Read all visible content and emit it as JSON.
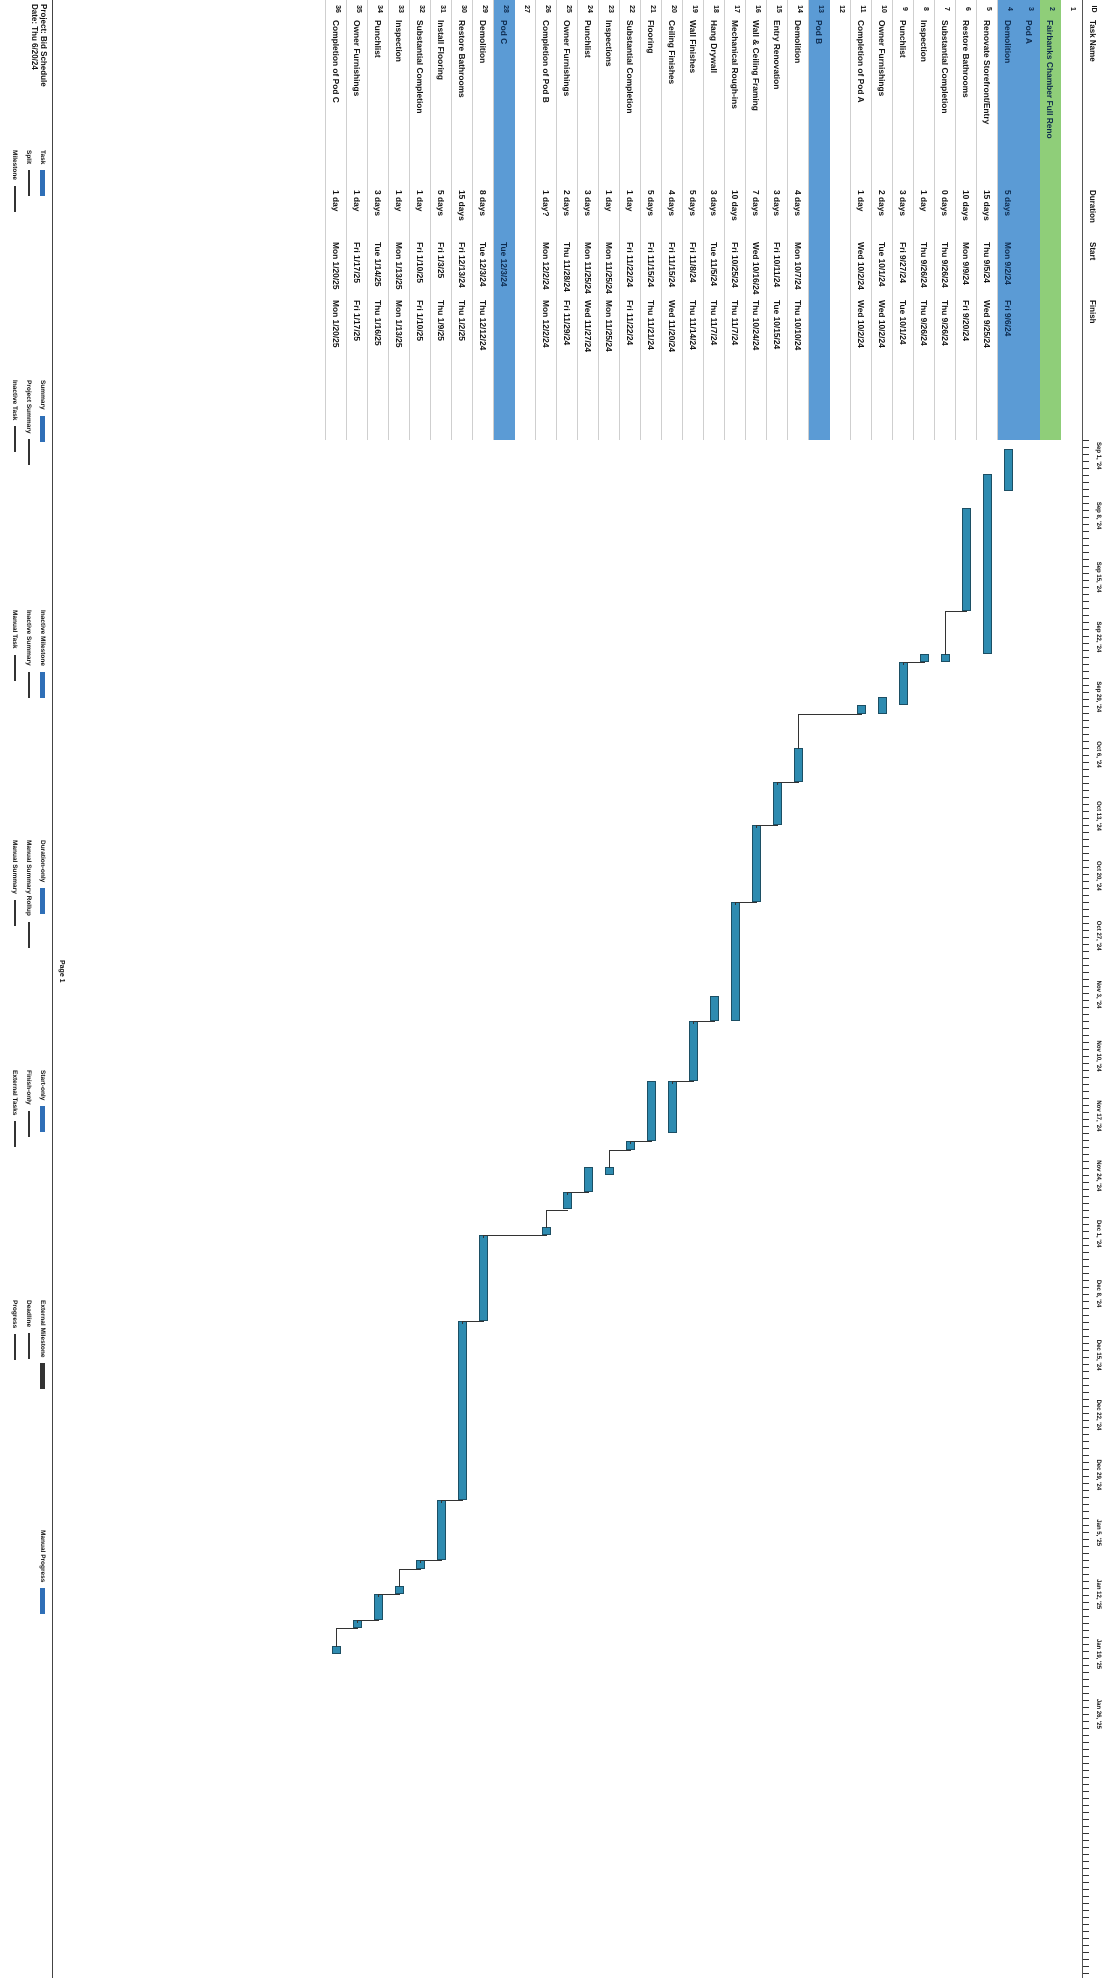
{
  "header": {
    "id": "ID",
    "task_name": "Task Name",
    "duration": "Duration",
    "start": "Start",
    "finish": "Finish"
  },
  "timeline": {
    "labels": [
      "Sep 1, '24",
      "Sep 8, '24",
      "Sep 15, '24",
      "Sep 22, '24",
      "Sep 29, '24",
      "Oct 6, '24",
      "Oct 13, '24",
      "Oct 20, '24",
      "Oct 27, '24",
      "Nov 3, '24",
      "Nov 10, '24",
      "Nov 17, '24",
      "Nov 24, '24",
      "Dec 1, '24",
      "Dec 8, '24",
      "Dec 15, '24",
      "Dec 22, '24",
      "Dec 29, '24",
      "Jan 5, '25",
      "Jan 12, '25",
      "Jan 19, '25",
      "Jan 26, '25"
    ]
  },
  "tasks": [
    {
      "id": "1",
      "name": "",
      "duration": "",
      "start": "",
      "finish": "",
      "style": "plain"
    },
    {
      "id": "2",
      "name": "Fairbanks Chamber Full Reno",
      "duration": "",
      "start": "",
      "finish": "",
      "style": "green"
    },
    {
      "id": "3",
      "name": "Pod A",
      "duration": "",
      "start": "",
      "finish": "",
      "style": "band"
    },
    {
      "id": "4",
      "name": "Demolition",
      "duration": "5 days",
      "start": "Mon 9/2/24",
      "finish": "Fri 9/6/24",
      "style": "band"
    },
    {
      "id": "5",
      "name": "Renovate Storefront/Entry",
      "duration": "15 days",
      "start": "Thu 9/5/24",
      "finish": "Wed 9/25/24",
      "style": "plain"
    },
    {
      "id": "6",
      "name": "Restore Bathrooms",
      "duration": "10 days",
      "start": "Mon 9/9/24",
      "finish": "Fri 9/20/24",
      "style": "plain"
    },
    {
      "id": "7",
      "name": "Substantial Completion",
      "duration": "0 days",
      "start": "Thu 9/26/24",
      "finish": "Thu 9/26/24",
      "style": "plain"
    },
    {
      "id": "8",
      "name": "Inspection",
      "duration": "1 day",
      "start": "Thu 9/26/24",
      "finish": "Thu 9/26/24",
      "style": "plain"
    },
    {
      "id": "9",
      "name": "Punchlist",
      "duration": "3 days",
      "start": "Fri 9/27/24",
      "finish": "Tue 10/1/24",
      "style": "plain"
    },
    {
      "id": "10",
      "name": "Owner Furnishings",
      "duration": "2 days",
      "start": "Tue 10/1/24",
      "finish": "Wed 10/2/24",
      "style": "plain"
    },
    {
      "id": "11",
      "name": "Completion of Pod A",
      "duration": "1 day",
      "start": "Wed 10/2/24",
      "finish": "Wed 10/2/24",
      "style": "plain"
    },
    {
      "id": "12",
      "name": "",
      "duration": "",
      "start": "",
      "finish": "",
      "style": "plain"
    },
    {
      "id": "13",
      "name": "Pod B",
      "duration": "",
      "start": "",
      "finish": "",
      "style": "band"
    },
    {
      "id": "14",
      "name": "Demolition",
      "duration": "4 days",
      "start": "Mon 10/7/24",
      "finish": "Thu 10/10/24",
      "style": "plain"
    },
    {
      "id": "15",
      "name": "Entry Renovation",
      "duration": "3 days",
      "start": "Fri 10/11/24",
      "finish": "Tue 10/15/24",
      "style": "plain"
    },
    {
      "id": "16",
      "name": "Wall & Ceiling Framing",
      "duration": "7 days",
      "start": "Wed 10/16/24",
      "finish": "Thu 10/24/24",
      "style": "plain"
    },
    {
      "id": "17",
      "name": "Mechanical Rough-ins",
      "duration": "10 days",
      "start": "Fri 10/25/24",
      "finish": "Thu 11/7/24",
      "style": "plain"
    },
    {
      "id": "18",
      "name": "Hang Drywall",
      "duration": "3 days",
      "start": "Tue 11/5/24",
      "finish": "Thu 11/7/24",
      "style": "plain"
    },
    {
      "id": "19",
      "name": "Wall Finishes",
      "duration": "5 days",
      "start": "Fri 11/8/24",
      "finish": "Thu 11/14/24",
      "style": "plain"
    },
    {
      "id": "20",
      "name": "Ceiling Finishes",
      "duration": "4 days",
      "start": "Fri 11/15/24",
      "finish": "Wed 11/20/24",
      "style": "plain"
    },
    {
      "id": "21",
      "name": "Flooring",
      "duration": "5 days",
      "start": "Fri 11/15/24",
      "finish": "Thu 11/21/24",
      "style": "plain"
    },
    {
      "id": "22",
      "name": "Substantial Completion",
      "duration": "1 day",
      "start": "Fri 11/22/24",
      "finish": "Fri 11/22/24",
      "style": "plain"
    },
    {
      "id": "23",
      "name": "Inspections",
      "duration": "1 day",
      "start": "Mon 11/25/24",
      "finish": "Mon 11/25/24",
      "style": "plain"
    },
    {
      "id": "24",
      "name": "Punchlist",
      "duration": "3 days",
      "start": "Mon 11/25/24",
      "finish": "Wed 11/27/24",
      "style": "plain"
    },
    {
      "id": "25",
      "name": "Owner Furnishings",
      "duration": "2 days",
      "start": "Thu 11/28/24",
      "finish": "Fri 11/29/24",
      "style": "plain"
    },
    {
      "id": "26",
      "name": "Completion of Pod B",
      "duration": "1 day?",
      "start": "Mon 12/2/24",
      "finish": "Mon 12/2/24",
      "style": "plain"
    },
    {
      "id": "27",
      "name": "",
      "duration": "",
      "start": "",
      "finish": "",
      "style": "plain"
    },
    {
      "id": "28",
      "name": "Pod C",
      "duration": "",
      "start": "Tue 12/3/24",
      "finish": "",
      "style": "band"
    },
    {
      "id": "29",
      "name": "Demolition",
      "duration": "8 days",
      "start": "Tue 12/3/24",
      "finish": "Thu 12/12/24",
      "style": "plain"
    },
    {
      "id": "30",
      "name": "Restore Bathrooms",
      "duration": "15 days",
      "start": "Fri 12/13/24",
      "finish": "Thu 1/2/25",
      "style": "plain"
    },
    {
      "id": "31",
      "name": "Install Flooring",
      "duration": "5 days",
      "start": "Fri 1/3/25",
      "finish": "Thu 1/9/25",
      "style": "plain"
    },
    {
      "id": "32",
      "name": "Substantial Completion",
      "duration": "1 day",
      "start": "Fri 1/10/25",
      "finish": "Fri 1/10/25",
      "style": "plain"
    },
    {
      "id": "33",
      "name": "Inspection",
      "duration": "1 day",
      "start": "Mon 1/13/25",
      "finish": "Mon 1/13/25",
      "style": "plain"
    },
    {
      "id": "34",
      "name": "Punchlist",
      "duration": "3 days",
      "start": "Tue 1/14/25",
      "finish": "Thu 1/16/25",
      "style": "plain"
    },
    {
      "id": "35",
      "name": "Owner Furnishings",
      "duration": "1 day",
      "start": "Fri 1/17/25",
      "finish": "Fri 1/17/25",
      "style": "plain"
    },
    {
      "id": "36",
      "name": "Completion of Pod C",
      "duration": "1 day",
      "start": "Mon 1/20/25",
      "finish": "Mon 1/20/25",
      "style": "plain"
    }
  ],
  "bar_color": "#2e8bb0",
  "summary_color": "#2f6fb7",
  "legend": {
    "project": "Project: Bid Schedule",
    "date": "Date: Thu 6/20/24",
    "items": [
      [
        "Task",
        "Split",
        "Milestone"
      ],
      [
        "Summary",
        "Project Summary",
        "Inactive Task"
      ],
      [
        "Inactive Milestone",
        "Inactive Summary",
        "Manual Task"
      ],
      [
        "Duration-only",
        "Manual Summary Rollup",
        "Manual Summary"
      ],
      [
        "Start-only",
        "Finish-only",
        "External Tasks"
      ],
      [
        "External Milestone",
        "Deadline",
        "Progress"
      ],
      [
        "Manual Progress"
      ]
    ],
    "page": "Page 1"
  }
}
